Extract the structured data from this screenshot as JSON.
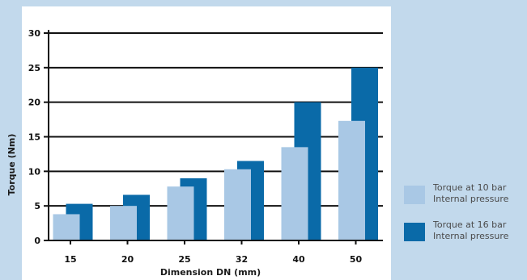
{
  "chart_data": {
    "type": "bar",
    "title": "",
    "xlabel": "Dimension DN (mm)",
    "ylabel": "Torque (Nm)",
    "categories": [
      "15",
      "20",
      "25",
      "32",
      "40",
      "50"
    ],
    "ylim": [
      0,
      30
    ],
    "yticks": [
      "0",
      "5",
      "10",
      "15",
      "20",
      "25",
      "30"
    ],
    "grid": true,
    "legend_position": "right",
    "series": [
      {
        "name": "Torque at 10 bar Internal pressure",
        "values": [
          3.8,
          5.0,
          7.8,
          10.3,
          13.5,
          17.3
        ],
        "color": "#a9c8e5"
      },
      {
        "name": "Torque at 16 bar Internal pressure",
        "values": [
          5.3,
          6.6,
          9.0,
          11.5,
          20.0,
          25.0
        ],
        "color": "#0a6aa8"
      }
    ]
  },
  "legend": {
    "items": [
      {
        "line1": "Torque at 10 bar",
        "line2": "Internal pressure",
        "color": "#a9c8e5"
      },
      {
        "line1": "Torque at 16 bar",
        "line2": "Internal pressure",
        "color": "#0a6aa8"
      }
    ]
  },
  "colors": {
    "background": "#c2d9ec",
    "panel": "#ffffff",
    "axis": "#111111"
  }
}
